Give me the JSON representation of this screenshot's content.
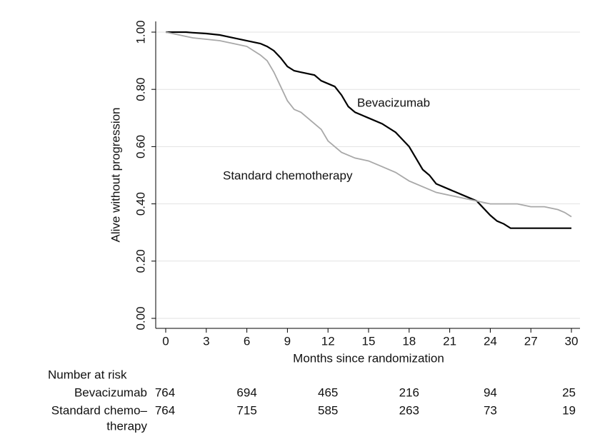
{
  "chart_data": {
    "type": "line",
    "xlabel": "Months since randomization",
    "ylabel": "Alive without progression",
    "xlim": [
      0,
      30
    ],
    "xticks": [
      0,
      3,
      6,
      9,
      12,
      15,
      18,
      21,
      24,
      27,
      30
    ],
    "ylim": [
      0,
      1
    ],
    "yticks": [
      {
        "value": 0,
        "label": "0.00"
      },
      {
        "value": 0.2,
        "label": "0.20"
      },
      {
        "value": 0.4,
        "label": "0.40"
      },
      {
        "value": 0.6,
        "label": "0.60"
      },
      {
        "value": 0.8,
        "label": "0.80"
      },
      {
        "value": 1,
        "label": "1.00"
      }
    ],
    "grid": true,
    "series": [
      {
        "name": "Bevacizumab",
        "color": "#000000",
        "x": [
          0,
          1.5,
          2,
          3,
          4,
          5,
          6,
          7,
          7.5,
          8,
          8.5,
          9,
          9.5,
          10,
          11,
          11.5,
          12,
          12.5,
          13,
          13.5,
          14,
          15,
          16,
          17,
          18,
          18.5,
          19,
          19.5,
          20,
          21,
          22,
          23,
          24,
          24.5,
          25,
          25.5,
          30
        ],
        "values": [
          1.0,
          1.0,
          0.998,
          0.995,
          0.99,
          0.98,
          0.97,
          0.96,
          0.95,
          0.935,
          0.91,
          0.88,
          0.865,
          0.86,
          0.85,
          0.83,
          0.82,
          0.81,
          0.78,
          0.74,
          0.72,
          0.7,
          0.68,
          0.65,
          0.6,
          0.56,
          0.52,
          0.5,
          0.47,
          0.45,
          0.43,
          0.41,
          0.36,
          0.34,
          0.33,
          0.315,
          0.315
        ]
      },
      {
        "name": "Standard chemotherapy",
        "color": "#a8a8a8",
        "x": [
          0,
          1,
          2,
          3,
          4,
          5,
          6,
          7,
          7.5,
          8,
          8.5,
          9,
          9.5,
          10,
          11,
          11.5,
          12,
          12.5,
          13,
          14,
          15,
          16,
          17,
          18,
          19,
          20,
          21,
          22,
          23,
          24,
          25,
          26,
          27,
          28,
          29,
          29.5,
          30
        ],
        "values": [
          1.0,
          0.99,
          0.98,
          0.975,
          0.97,
          0.96,
          0.95,
          0.92,
          0.9,
          0.86,
          0.81,
          0.76,
          0.73,
          0.72,
          0.68,
          0.66,
          0.62,
          0.6,
          0.58,
          0.56,
          0.55,
          0.53,
          0.51,
          0.48,
          0.46,
          0.44,
          0.43,
          0.42,
          0.41,
          0.4,
          0.4,
          0.4,
          0.39,
          0.39,
          0.38,
          0.37,
          0.355
        ]
      }
    ],
    "risk_table": {
      "title": "Number at risk",
      "x": [
        0,
        6,
        12,
        18,
        24,
        30
      ],
      "rows": [
        {
          "label_lines": [
            "Bevacizumab"
          ],
          "values": [
            764,
            694,
            465,
            216,
            94,
            25
          ]
        },
        {
          "label_lines": [
            "Standard chemo–",
            "therapy"
          ],
          "values": [
            764,
            715,
            585,
            263,
            73,
            19
          ]
        }
      ]
    }
  }
}
